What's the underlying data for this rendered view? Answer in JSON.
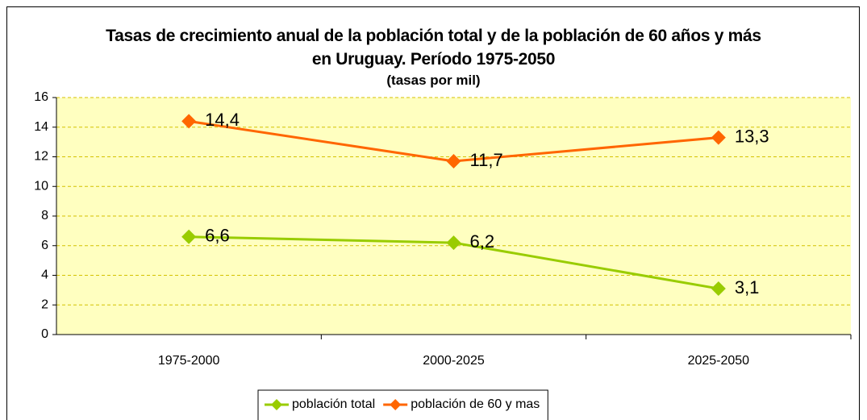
{
  "chart_data": {
    "type": "line",
    "title": "Tasas de crecimiento anual de la población total y de la población de 60 años y más en Uruguay. Período 1975-2050",
    "subtitle": "(tasas por mil)",
    "categories": [
      "1975-2000",
      "2000-2025",
      "2025-2050"
    ],
    "series": [
      {
        "name": "población total",
        "color": "#99cc00",
        "values": [
          6.6,
          6.2,
          3.1
        ],
        "value_labels": [
          "6,6",
          "6,2",
          "3,1"
        ]
      },
      {
        "name": "población de 60 y mas",
        "color": "#ff6600",
        "values": [
          14.4,
          11.7,
          13.3
        ],
        "value_labels": [
          "14,4",
          "11,7",
          "13,3"
        ]
      }
    ],
    "ylim": [
      0,
      16
    ],
    "yticks": [
      0,
      2,
      4,
      6,
      8,
      10,
      12,
      14,
      16
    ],
    "grid": true,
    "legend": "bottom"
  }
}
